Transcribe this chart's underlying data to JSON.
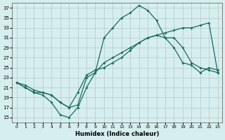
{
  "xlabel": "Humidex (Indice chaleur)",
  "ylabel": "",
  "bg_color": "#d6eeee",
  "grid_color": "#b0c8c8",
  "line_color": "#1a6b5a",
  "xlim": [
    -0.5,
    23.5
  ],
  "ylim": [
    14,
    38
  ],
  "yticks": [
    15,
    17,
    19,
    21,
    23,
    25,
    27,
    29,
    31,
    33,
    35,
    37
  ],
  "xticks": [
    0,
    1,
    2,
    3,
    4,
    5,
    6,
    7,
    8,
    9,
    10,
    11,
    12,
    13,
    14,
    15,
    16,
    17,
    18,
    19,
    20,
    21,
    22,
    23
  ],
  "line1_x": [
    0,
    1,
    2,
    3,
    4,
    5,
    6,
    7,
    8,
    9,
    10,
    11,
    12,
    13,
    14,
    15,
    16,
    17,
    18,
    19,
    20,
    21,
    22,
    23
  ],
  "line1_y": [
    22,
    21,
    20,
    19.5,
    18,
    15.5,
    15,
    17,
    21,
    24,
    31,
    33,
    35,
    36,
    37.5,
    36.5,
    34.5,
    31,
    29,
    26,
    25.5,
    24,
    25,
    24.5
  ],
  "line2_x": [
    0,
    1,
    2,
    3,
    4,
    5,
    6,
    7,
    8,
    9,
    10,
    11,
    12,
    13,
    14,
    15,
    16,
    17,
    18,
    19,
    20,
    21,
    22,
    23
  ],
  "line2_y": [
    22,
    21,
    20,
    20,
    19.5,
    18,
    17,
    17.5,
    23,
    24,
    26,
    27,
    28,
    29,
    30,
    31,
    31.5,
    31,
    31,
    29,
    26,
    25,
    24.5,
    24
  ],
  "line3_x": [
    0,
    1,
    2,
    3,
    4,
    5,
    6,
    7,
    8,
    9,
    10,
    11,
    12,
    13,
    14,
    15,
    16,
    17,
    18,
    19,
    20,
    21,
    22,
    23
  ],
  "line3_y": [
    22,
    21.5,
    20.5,
    20,
    19.5,
    18,
    17,
    20,
    23.5,
    24.5,
    25,
    26,
    27,
    28.5,
    30,
    31,
    31.5,
    32,
    32.5,
    33,
    33,
    33.5,
    34,
    24
  ]
}
